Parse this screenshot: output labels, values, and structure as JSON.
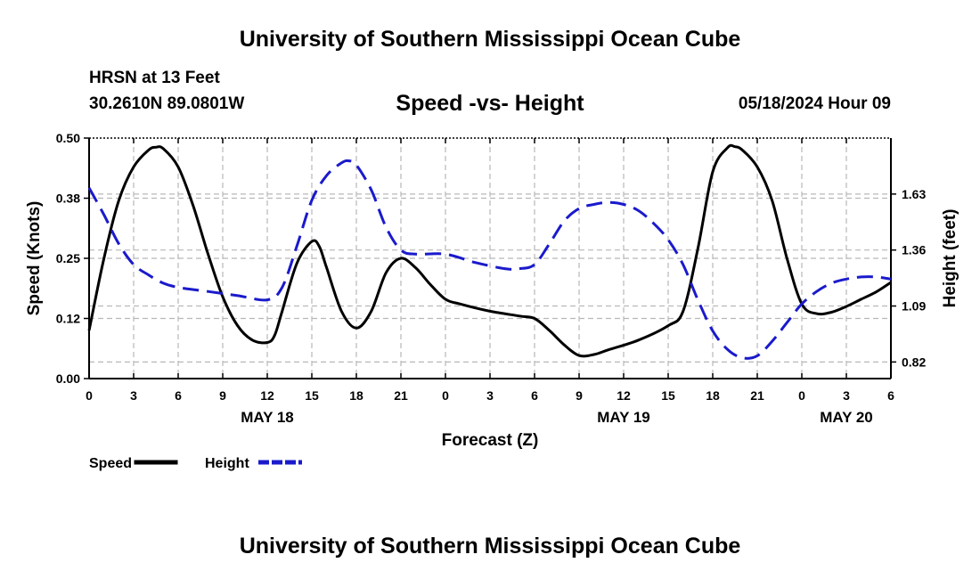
{
  "header": {
    "title": "University of Southern Mississippi Ocean Cube",
    "footer_title": "University of Southern Mississippi Ocean Cube",
    "station": "HRSN at 13 Feet",
    "coords": "30.2610N  89.0801W",
    "subtitle": "Speed -vs- Height",
    "datestamp": "05/18/2024 Hour 09"
  },
  "chart_data": {
    "type": "line",
    "xlabel": "Forecast (Z)",
    "ylabel_left": "Speed (Knots)",
    "ylabel_right": "Height (feet)",
    "x_range_hours": [
      0,
      54
    ],
    "x_tick_hours": [
      0,
      3,
      6,
      9,
      12,
      15,
      18,
      21,
      24,
      27,
      30,
      33,
      36,
      39,
      42,
      45,
      48,
      51,
      54
    ],
    "x_tick_labels": [
      "0",
      "3",
      "6",
      "9",
      "12",
      "15",
      "18",
      "21",
      "0",
      "3",
      "6",
      "9",
      "12",
      "15",
      "18",
      "21",
      "0",
      "3",
      "6"
    ],
    "day_labels": [
      {
        "label": "MAY 18",
        "hour": 12
      },
      {
        "label": "MAY 19",
        "hour": 36
      },
      {
        "label": "MAY 20",
        "hour": 51
      }
    ],
    "y_left_range": [
      0,
      0.5
    ],
    "y_left_ticks": [
      0.0,
      0.125,
      0.25,
      0.375,
      0.5
    ],
    "y_left_tick_labels": [
      "0.00",
      "0.12",
      "0.25",
      "0.38",
      "0.50"
    ],
    "y_right_range": [
      0.74,
      1.9
    ],
    "y_right_ticks": [
      0.82,
      1.09,
      1.36,
      1.63
    ],
    "y_right_tick_labels": [
      "0.82",
      "1.09",
      "1.36",
      "1.63"
    ],
    "series": [
      {
        "name": "Speed",
        "axis": "left",
        "color": "#000000",
        "dash": "solid",
        "points": [
          [
            0,
            0.1
          ],
          [
            1,
            0.25
          ],
          [
            2,
            0.37
          ],
          [
            3,
            0.44
          ],
          [
            4,
            0.475
          ],
          [
            4.5,
            0.481
          ],
          [
            5,
            0.478
          ],
          [
            6,
            0.44
          ],
          [
            7,
            0.36
          ],
          [
            8,
            0.26
          ],
          [
            9,
            0.17
          ],
          [
            10,
            0.11
          ],
          [
            11,
            0.08
          ],
          [
            12,
            0.075
          ],
          [
            12.5,
            0.09
          ],
          [
            13,
            0.14
          ],
          [
            14,
            0.24
          ],
          [
            15,
            0.285
          ],
          [
            15.5,
            0.275
          ],
          [
            16,
            0.23
          ],
          [
            17,
            0.14
          ],
          [
            18,
            0.105
          ],
          [
            19,
            0.14
          ],
          [
            20,
            0.22
          ],
          [
            21,
            0.25
          ],
          [
            22,
            0.23
          ],
          [
            23,
            0.195
          ],
          [
            24,
            0.165
          ],
          [
            25,
            0.155
          ],
          [
            27,
            0.14
          ],
          [
            29,
            0.13
          ],
          [
            30,
            0.125
          ],
          [
            31,
            0.1
          ],
          [
            32,
            0.07
          ],
          [
            33,
            0.048
          ],
          [
            34,
            0.05
          ],
          [
            35,
            0.06
          ],
          [
            37,
            0.08
          ],
          [
            39,
            0.11
          ],
          [
            40,
            0.14
          ],
          [
            41,
            0.27
          ],
          [
            42,
            0.43
          ],
          [
            43,
            0.48
          ],
          [
            43.5,
            0.482
          ],
          [
            44,
            0.475
          ],
          [
            45,
            0.44
          ],
          [
            46,
            0.37
          ],
          [
            47,
            0.25
          ],
          [
            48,
            0.155
          ],
          [
            49,
            0.135
          ],
          [
            50,
            0.138
          ],
          [
            51,
            0.15
          ],
          [
            52,
            0.165
          ],
          [
            53,
            0.18
          ],
          [
            54,
            0.2
          ]
        ]
      },
      {
        "name": "Height",
        "axis": "right",
        "color": "#1a1acc",
        "dash": "dashed",
        "points": [
          [
            0,
            1.66
          ],
          [
            1,
            1.53
          ],
          [
            2,
            1.39
          ],
          [
            3,
            1.29
          ],
          [
            4,
            1.24
          ],
          [
            5,
            1.2
          ],
          [
            6,
            1.18
          ],
          [
            8,
            1.16
          ],
          [
            10,
            1.14
          ],
          [
            12,
            1.12
          ],
          [
            13,
            1.18
          ],
          [
            14,
            1.38
          ],
          [
            15,
            1.6
          ],
          [
            16,
            1.72
          ],
          [
            17,
            1.78
          ],
          [
            17.5,
            1.79
          ],
          [
            18,
            1.77
          ],
          [
            19,
            1.65
          ],
          [
            20,
            1.47
          ],
          [
            21,
            1.36
          ],
          [
            22,
            1.34
          ],
          [
            24,
            1.34
          ],
          [
            26,
            1.3
          ],
          [
            28,
            1.27
          ],
          [
            29,
            1.27
          ],
          [
            30,
            1.29
          ],
          [
            31,
            1.39
          ],
          [
            32,
            1.5
          ],
          [
            33,
            1.56
          ],
          [
            34,
            1.58
          ],
          [
            35,
            1.59
          ],
          [
            36,
            1.58
          ],
          [
            37,
            1.55
          ],
          [
            38,
            1.49
          ],
          [
            39,
            1.41
          ],
          [
            40,
            1.29
          ],
          [
            41,
            1.12
          ],
          [
            42,
            0.97
          ],
          [
            43,
            0.88
          ],
          [
            44,
            0.84
          ],
          [
            45,
            0.85
          ],
          [
            46,
            0.92
          ],
          [
            47,
            1.01
          ],
          [
            48,
            1.1
          ],
          [
            49,
            1.16
          ],
          [
            50,
            1.2
          ],
          [
            51,
            1.22
          ],
          [
            52,
            1.23
          ],
          [
            53,
            1.23
          ],
          [
            54,
            1.22
          ]
        ]
      }
    ],
    "legend": {
      "position": "bottom-left",
      "entries": [
        {
          "label": "Speed",
          "color": "#000000",
          "dash": "solid"
        },
        {
          "label": "Height",
          "color": "#1a1acc",
          "dash": "dashed"
        }
      ]
    }
  }
}
